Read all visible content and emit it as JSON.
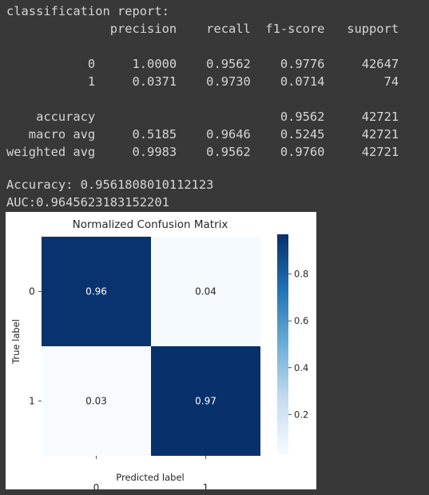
{
  "console": {
    "report_lines": [
      "classification report:",
      "              precision    recall  f1-score   support",
      "",
      "           0     1.0000    0.9562    0.9776     42647",
      "           1     0.0371    0.9730    0.0714        74",
      "",
      "    accuracy                         0.9562     42721",
      "   macro avg     0.5185    0.9646    0.5245     42721",
      "weighted avg     0.9983    0.9562    0.9760     42721"
    ],
    "accuracy_line": "Accuracy: 0.9561808010112123",
    "auc_line": "AUC:0.9645623183152201"
  },
  "chart_data": {
    "type": "heatmap",
    "title": "Normalized Confusion Matrix",
    "xlabel": "Predicted label",
    "ylabel": "True label",
    "x_categories": [
      "0",
      "1"
    ],
    "y_categories": [
      "0",
      "1"
    ],
    "values": [
      [
        0.96,
        0.04
      ],
      [
        0.03,
        0.97
      ]
    ],
    "value_labels": [
      [
        "0.96",
        "0.04"
      ],
      [
        "0.03",
        "0.97"
      ]
    ],
    "colormap": "Blues",
    "colorbar": {
      "range": [
        0.03,
        0.97
      ],
      "ticks": [
        0.2,
        0.4,
        0.6,
        0.8
      ],
      "tick_labels": [
        "0.2",
        "0.4",
        "0.6",
        "0.8"
      ]
    },
    "colors": {
      "low": "#f7fbff",
      "mid_low": "#c6dbef",
      "mid": "#6baed6",
      "mid_high": "#2171b5",
      "high": "#08306b",
      "text_dark": "#262626",
      "text_light": "#ffffff"
    }
  }
}
